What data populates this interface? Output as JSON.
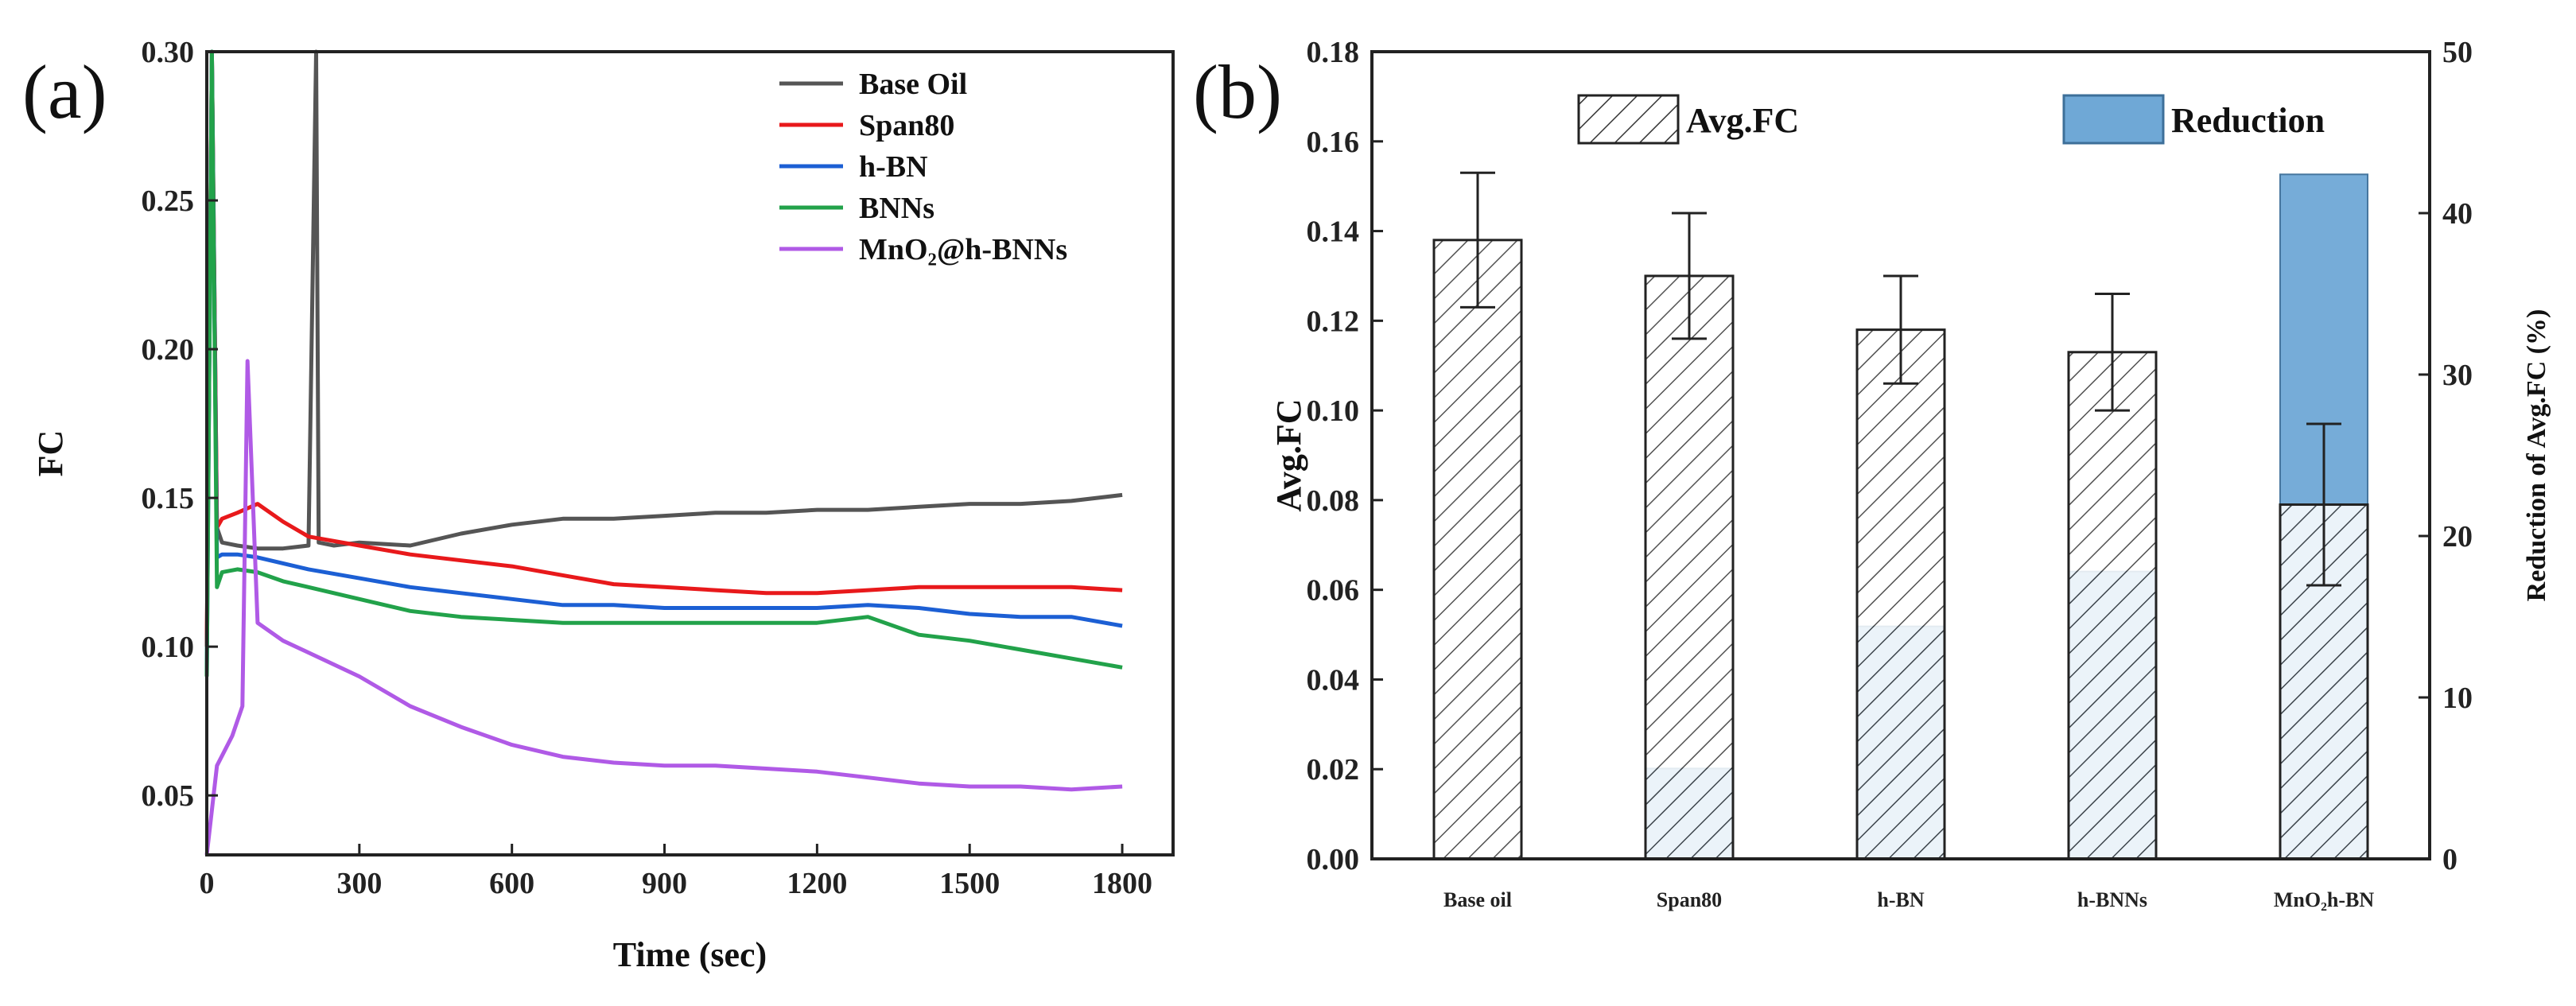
{
  "chart_data": [
    {
      "panel": "(a)",
      "type": "line",
      "xlabel": "Time (sec)",
      "ylabel": "FC",
      "xlim": [
        0,
        1900
      ],
      "ylim": [
        0.03,
        0.3
      ],
      "xticks": [
        "0",
        "300",
        "600",
        "900",
        "1200",
        "1500",
        "1800"
      ],
      "yticks": [
        "0.05",
        "0.10",
        "0.15",
        "0.20",
        "0.25",
        "0.30"
      ],
      "legend_position": "top-right",
      "series": [
        {
          "name": "Base Oil",
          "color": "#555555",
          "x": [
            0,
            10,
            20,
            30,
            60,
            100,
            150,
            200,
            215,
            220,
            250,
            300,
            400,
            500,
            600,
            700,
            800,
            900,
            1000,
            1100,
            1200,
            1300,
            1400,
            1500,
            1600,
            1700,
            1800
          ],
          "y": [
            0.1,
            0.3,
            0.14,
            0.135,
            0.134,
            0.133,
            0.133,
            0.134,
            0.3,
            0.135,
            0.134,
            0.135,
            0.134,
            0.138,
            0.141,
            0.143,
            0.143,
            0.144,
            0.145,
            0.145,
            0.146,
            0.146,
            0.147,
            0.148,
            0.148,
            0.149,
            0.151
          ]
        },
        {
          "name": "Span80",
          "color": "#e8191b",
          "x": [
            0,
            10,
            20,
            30,
            60,
            100,
            150,
            200,
            300,
            400,
            500,
            600,
            700,
            800,
            900,
            1000,
            1100,
            1200,
            1300,
            1400,
            1500,
            1600,
            1700,
            1800
          ],
          "y": [
            0.1,
            0.3,
            0.14,
            0.143,
            0.145,
            0.148,
            0.142,
            0.137,
            0.134,
            0.131,
            0.129,
            0.127,
            0.124,
            0.121,
            0.12,
            0.119,
            0.118,
            0.118,
            0.119,
            0.12,
            0.12,
            0.12,
            0.12,
            0.119
          ]
        },
        {
          "name": "h-BN",
          "color": "#1c5fd4",
          "x": [
            0,
            10,
            20,
            30,
            60,
            100,
            150,
            200,
            300,
            400,
            500,
            600,
            700,
            800,
            900,
            1000,
            1100,
            1200,
            1300,
            1400,
            1500,
            1600,
            1700,
            1800
          ],
          "y": [
            0.09,
            0.3,
            0.13,
            0.131,
            0.131,
            0.13,
            0.128,
            0.126,
            0.123,
            0.12,
            0.118,
            0.116,
            0.114,
            0.114,
            0.113,
            0.113,
            0.113,
            0.113,
            0.114,
            0.113,
            0.111,
            0.11,
            0.11,
            0.107
          ]
        },
        {
          "name": "BNNs",
          "color": "#22a24a",
          "x": [
            0,
            10,
            20,
            30,
            60,
            100,
            150,
            200,
            300,
            400,
            500,
            600,
            700,
            800,
            900,
            1000,
            1100,
            1200,
            1300,
            1400,
            1500,
            1600,
            1700,
            1800
          ],
          "y": [
            0.09,
            0.3,
            0.12,
            0.125,
            0.126,
            0.125,
            0.122,
            0.12,
            0.116,
            0.112,
            0.11,
            0.109,
            0.108,
            0.108,
            0.108,
            0.108,
            0.108,
            0.108,
            0.11,
            0.104,
            0.102,
            0.099,
            0.096,
            0.093
          ]
        },
        {
          "name": "MnO₂@h-BNNs",
          "color": "#b05ae6",
          "x": [
            0,
            20,
            50,
            70,
            80,
            100,
            150,
            200,
            300,
            400,
            500,
            600,
            700,
            800,
            900,
            1000,
            1100,
            1200,
            1300,
            1400,
            1500,
            1600,
            1700,
            1800
          ],
          "y": [
            0.03,
            0.06,
            0.07,
            0.08,
            0.196,
            0.108,
            0.102,
            0.098,
            0.09,
            0.08,
            0.073,
            0.067,
            0.063,
            0.061,
            0.06,
            0.06,
            0.059,
            0.058,
            0.056,
            0.054,
            0.053,
            0.053,
            0.052,
            0.053
          ]
        }
      ]
    },
    {
      "panel": "(b)",
      "type": "bar",
      "categories": [
        "Base oil",
        "Span80",
        "h-BN",
        "h-BNNs",
        "MnO₂h-BN"
      ],
      "ylabel": "Avg.FC",
      "y2label": "Reduction of Avg.FC (%)",
      "ylim": [
        0,
        0.18
      ],
      "y2lim": [
        0,
        50
      ],
      "yticks": [
        "0.00",
        "0.02",
        "0.04",
        "0.06",
        "0.08",
        "0.10",
        "0.12",
        "0.14",
        "0.16",
        "0.18"
      ],
      "y2ticks": [
        "0",
        "10",
        "20",
        "30",
        "40",
        "50"
      ],
      "legend_position": "top",
      "series": [
        {
          "name": "Avg.FC",
          "axis": "left",
          "pattern": "hatched",
          "values": [
            0.138,
            0.13,
            0.118,
            0.113,
            0.079
          ],
          "errors": [
            0.015,
            0.014,
            0.012,
            0.013,
            0.018
          ]
        },
        {
          "name": "Reduction",
          "axis": "right",
          "color": "#6fa8d6",
          "values": [
            0,
            5.6,
            14.4,
            17.8,
            42.4
          ]
        }
      ]
    }
  ]
}
